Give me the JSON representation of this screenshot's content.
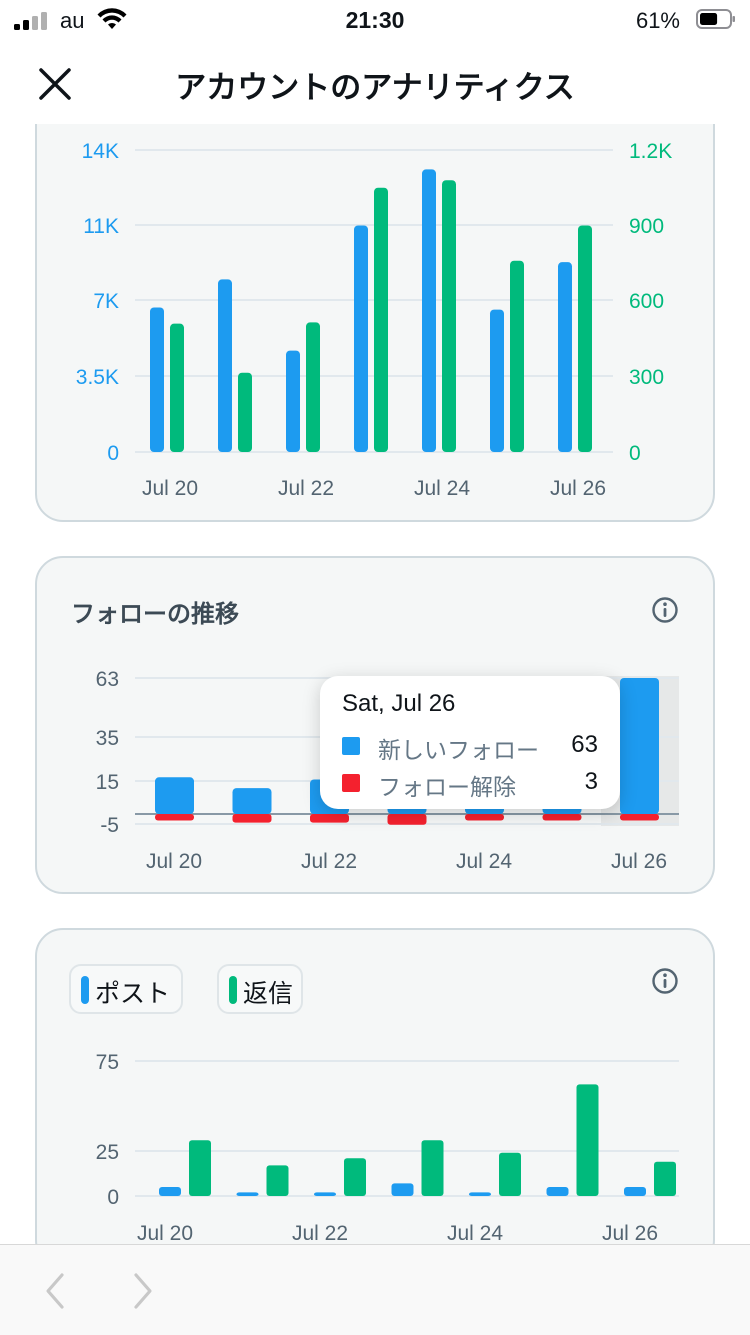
{
  "status_bar": {
    "carrier": "au",
    "time": "21:30",
    "battery_percent": "61%",
    "battery_level": 0.61
  },
  "header": {
    "title": "アカウントのアナリティクス",
    "close_icon": "close-icon"
  },
  "colors": {
    "blue": "#1d9bf0",
    "green": "#00ba7c",
    "red": "#f4212e",
    "axis_text": "#536471",
    "card_bg": "#f5f7f7"
  },
  "impressions_chart": {
    "left_ticks": [
      "14K",
      "11K",
      "7K",
      "3.5K",
      "0"
    ],
    "right_ticks": [
      "1.2K",
      "900",
      "600",
      "300",
      "0"
    ],
    "x_labels": [
      "Jul 20",
      "Jul 22",
      "Jul 24",
      "Jul 26"
    ]
  },
  "follows_section": {
    "title": "フォローの推移",
    "info_icon": "info-icon",
    "y_ticks": [
      "63",
      "35",
      "15",
      "-5"
    ],
    "x_labels": [
      "Jul 20",
      "Jul 22",
      "Jul 24",
      "Jul 26"
    ],
    "tooltip": {
      "date": "Sat, Jul 26",
      "new_follows_label": "新しいフォロー",
      "new_follows_value": "63",
      "unfollows_label": "フォロー解除",
      "unfollows_value": "3"
    }
  },
  "posts_section": {
    "legend_posts": "ポスト",
    "legend_replies": "返信",
    "info_icon": "info-icon",
    "y_ticks": [
      "75",
      "25",
      "0"
    ],
    "x_labels": [
      "Jul 20",
      "Jul 22",
      "Jul 24",
      "Jul 26"
    ]
  },
  "chart_data": [
    {
      "type": "bar",
      "categories": [
        "Jul 20",
        "Jul 21",
        "Jul 22",
        "Jul 23",
        "Jul 24",
        "Jul 25",
        "Jul 26"
      ],
      "series": [
        {
          "axis": "left",
          "color": "#1d9bf0",
          "values": [
            6700,
            8000,
            4700,
            10500,
            13100,
            6600,
            8800
          ]
        },
        {
          "axis": "right",
          "color": "#00ba7c",
          "values": [
            510,
            315,
            515,
            1050,
            1080,
            760,
            900
          ]
        }
      ],
      "ylim_left": [
        0,
        14000
      ],
      "ylim_right": [
        0,
        1200
      ],
      "ytick_labels_left": [
        "0",
        "3.5K",
        "7K",
        "11K",
        "14K"
      ],
      "ytick_labels_right": [
        "0",
        "300",
        "600",
        "900",
        "1.2K"
      ],
      "xtick_labels": [
        "Jul 20",
        "Jul 22",
        "Jul 24",
        "Jul 26"
      ]
    },
    {
      "type": "bar",
      "title": "フォローの推移",
      "categories": [
        "Jul 20",
        "Jul 21",
        "Jul 22",
        "Jul 23",
        "Jul 24",
        "Jul 25",
        "Jul 26"
      ],
      "series": [
        {
          "name": "新しいフォロー",
          "color": "#1d9bf0",
          "values": [
            17,
            12,
            16,
            12,
            15,
            15,
            63
          ]
        },
        {
          "name": "フォロー解除",
          "color": "#f4212e",
          "values": [
            -3,
            -4,
            -4,
            -5,
            -3,
            -3,
            -3
          ]
        }
      ],
      "ylim": [
        -5,
        63
      ],
      "ytick_labels": [
        "-5",
        "15",
        "35",
        "63"
      ],
      "xtick_labels": [
        "Jul 20",
        "Jul 22",
        "Jul 24",
        "Jul 26"
      ],
      "highlighted": "Jul 26"
    },
    {
      "type": "bar",
      "categories": [
        "Jul 20",
        "Jul 21",
        "Jul 22",
        "Jul 23",
        "Jul 24",
        "Jul 25",
        "Jul 26"
      ],
      "series": [
        {
          "name": "ポスト",
          "color": "#1d9bf0",
          "values": [
            5,
            2,
            2,
            7,
            2,
            5,
            5
          ]
        },
        {
          "name": "返信",
          "color": "#00ba7c",
          "values": [
            31,
            17,
            21,
            31,
            24,
            62,
            19
          ]
        }
      ],
      "ylim": [
        0,
        75
      ],
      "ytick_labels": [
        "0",
        "25",
        "75"
      ],
      "xtick_labels": [
        "Jul 20",
        "Jul 22",
        "Jul 24",
        "Jul 26"
      ]
    }
  ]
}
